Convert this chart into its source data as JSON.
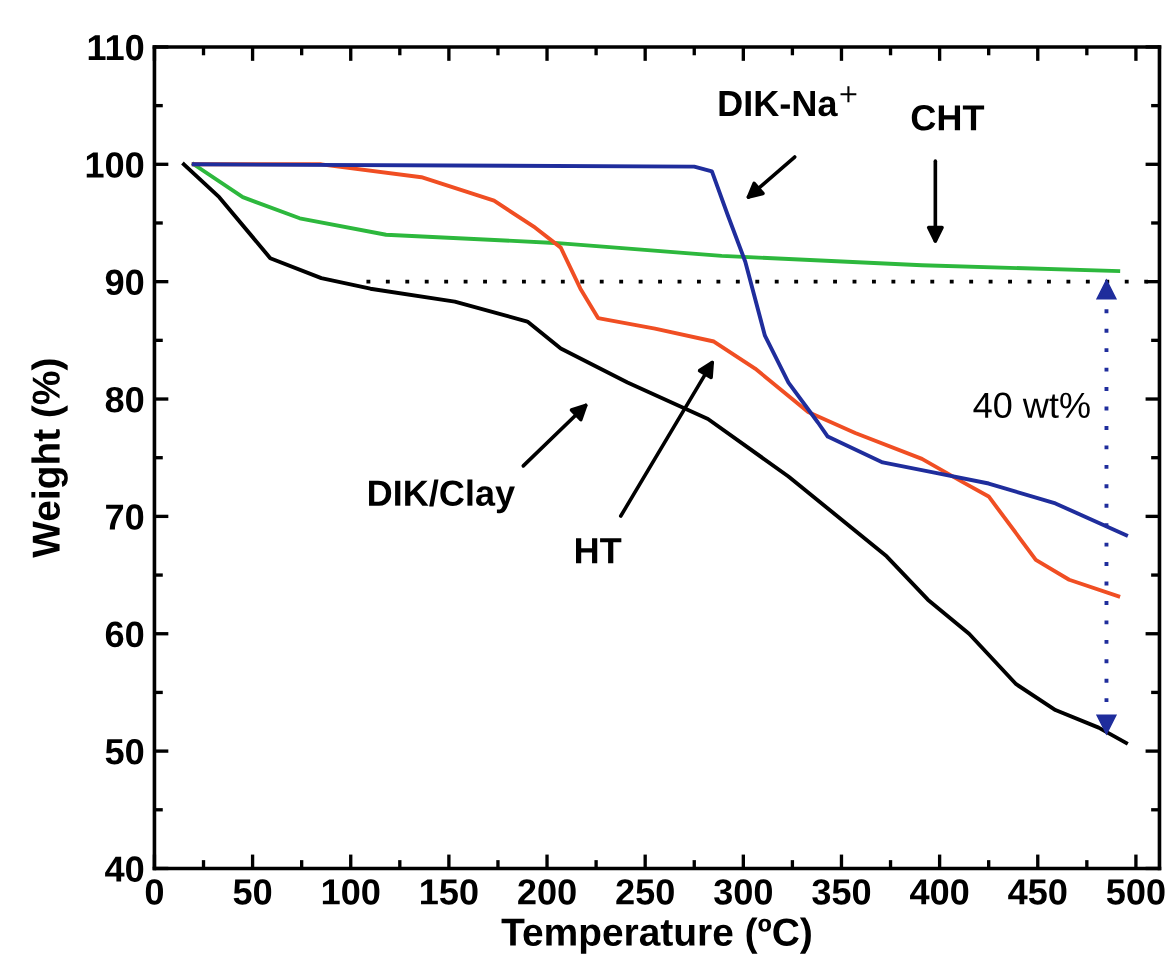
{
  "chart_data": {
    "type": "line",
    "xlabel": "Temperature (ºC)",
    "ylabel": "Weight (%)",
    "xlim": [
      0,
      512
    ],
    "ylim": [
      40,
      110
    ],
    "xticks": [
      0,
      50,
      100,
      150,
      200,
      250,
      300,
      350,
      400,
      450,
      500
    ],
    "yticks": [
      40,
      50,
      60,
      70,
      80,
      90,
      100,
      110
    ],
    "grid": false,
    "series": [
      {
        "color": "#000000",
        "x": [
          15,
          33,
          59,
          85,
          110,
          153,
          190,
          207,
          241,
          282,
          323,
          373,
          394,
          415,
          439,
          459,
          481,
          495
        ],
        "values": [
          100,
          97.2,
          92,
          90.3,
          89.4,
          88.3,
          86.6,
          84.3,
          81.4,
          78.3,
          73.4,
          66.6,
          62.9,
          60,
          55.7,
          53.5,
          52,
          50.7
        ]
      },
      {
        "color": "#2db83d",
        "x": [
          20,
          45,
          74,
          118,
          204,
          289,
          391,
          491
        ],
        "values": [
          100,
          97.2,
          95.4,
          94,
          93.3,
          92.2,
          91.4,
          90.9
        ]
      },
      {
        "color": "#f04e23",
        "x": [
          20,
          85,
          136,
          173,
          194,
          207,
          217,
          226,
          255,
          285,
          306,
          333,
          357,
          391,
          412,
          425,
          449,
          466,
          491
        ],
        "values": [
          100,
          100,
          98.9,
          96.9,
          94.6,
          92.9,
          89.4,
          86.9,
          86,
          84.9,
          82.6,
          78.9,
          77.1,
          74.9,
          72.9,
          71.7,
          66.3,
          64.6,
          63.2
        ]
      },
      {
        "color": "#1f2d9c",
        "x": [
          20,
          275,
          284,
          292,
          301,
          311,
          323,
          338,
          343,
          371,
          398,
          425,
          459,
          495
        ],
        "values": [
          100,
          99.8,
          99.4,
          95.7,
          91.7,
          85.4,
          81.4,
          78,
          76.8,
          74.6,
          73.7,
          72.8,
          71.1,
          68.4
        ]
      },
      {
        "color": "#000000",
        "line_style": "dotted",
        "x": [
          108,
          508
        ],
        "values": [
          90,
          90
        ]
      },
      {
        "color": "#1f2d9c",
        "line_style": "dotted",
        "marker": "triangle",
        "x": [
          485,
          485
        ],
        "values": [
          89.3,
          52.3
        ]
      }
    ],
    "annotations": [
      "DIK-Na$^{+}$",
      "CHT",
      "DIK/Clay",
      "HT",
      "40 wt%"
    ]
  }
}
